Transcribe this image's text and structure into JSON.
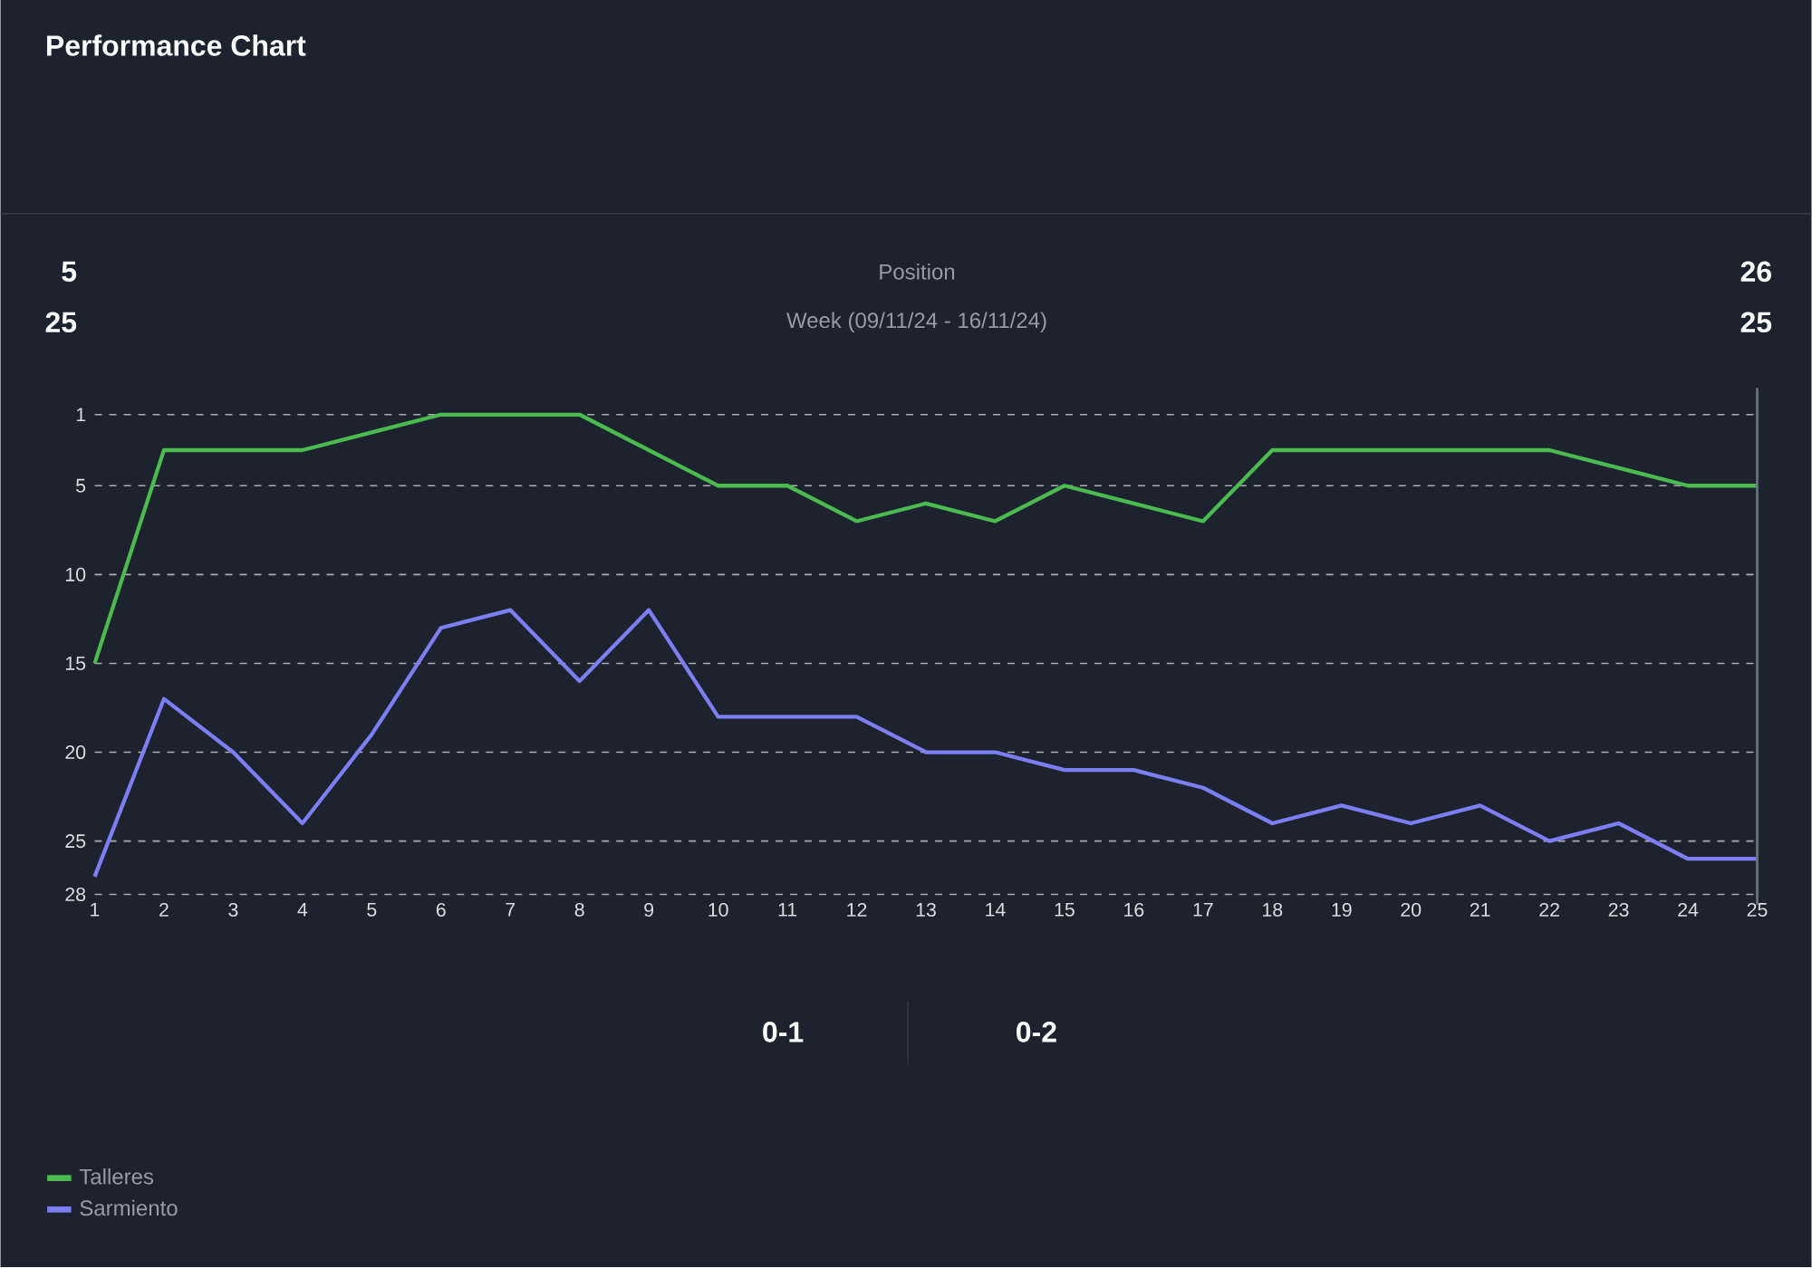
{
  "chart_data": {
    "type": "line",
    "title": "Performance Chart",
    "x": [
      1,
      2,
      3,
      4,
      5,
      6,
      7,
      8,
      9,
      10,
      11,
      12,
      13,
      14,
      15,
      16,
      17,
      18,
      19,
      20,
      21,
      22,
      23,
      24,
      25
    ],
    "series": [
      {
        "name": "Talleres",
        "color": "#4cbb4f",
        "values": [
          15,
          3,
          3,
          3,
          2,
          1,
          1,
          1,
          3,
          5,
          5,
          7,
          6,
          7,
          5,
          6,
          7,
          3,
          3,
          3,
          3,
          3,
          4,
          5,
          5
        ]
      },
      {
        "name": "Sarmiento",
        "color": "#7b7ff2",
        "values": [
          27,
          17,
          20,
          24,
          19,
          13,
          12,
          16,
          12,
          18,
          18,
          18,
          20,
          20,
          21,
          21,
          22,
          24,
          23,
          24,
          23,
          25,
          24,
          26,
          26
        ]
      }
    ],
    "xlim": [
      1,
      25
    ],
    "xticks": [
      1,
      2,
      3,
      4,
      5,
      6,
      7,
      8,
      9,
      10,
      11,
      12,
      13,
      14,
      15,
      16,
      17,
      18,
      19,
      20,
      21,
      22,
      23,
      24,
      25
    ],
    "ylim": [
      28,
      1
    ],
    "yticks": [
      1,
      5,
      10,
      15,
      20,
      25,
      28
    ],
    "grid": "y",
    "legend": "bottom left",
    "marker": "none",
    "line_style": "solid",
    "ref_lines": [
      {
        "axis": "x",
        "value": 25,
        "color": "#6b7480"
      }
    ],
    "annotations": [
      "5",
      "25",
      "26",
      "25",
      "Position",
      "Week (09/11/24 - 16/11/24)",
      "0-1",
      "0-2"
    ]
  }
}
